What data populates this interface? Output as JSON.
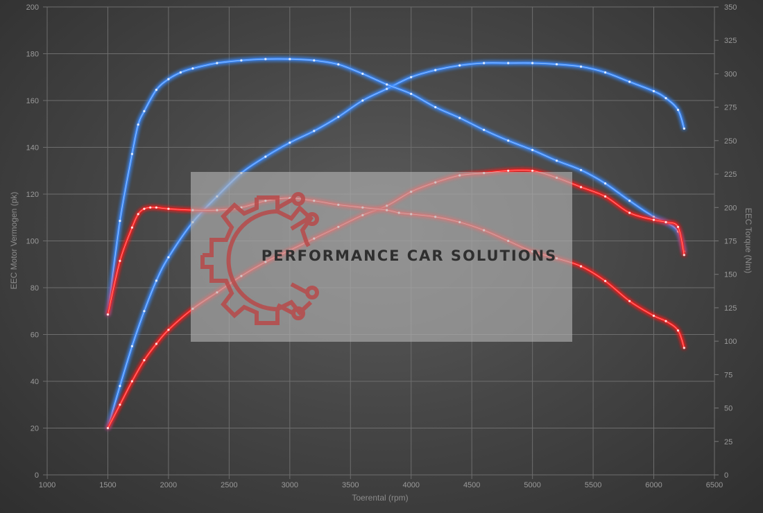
{
  "chart_data": {
    "type": "line",
    "title": "",
    "xlabel": "Toerental (rpm)",
    "ylabel_left": "EEC Motor Vermogen (pk)",
    "ylabel_right": "EEC Torque (Nm)",
    "xlim": [
      1000,
      6500
    ],
    "ylim_left": [
      0,
      200
    ],
    "ylim_right": [
      0,
      350
    ],
    "x_ticks": [
      1000,
      1500,
      2000,
      2500,
      3000,
      3500,
      4000,
      4500,
      5000,
      5500,
      6000,
      6500
    ],
    "y_left_ticks": [
      0,
      20,
      40,
      60,
      80,
      100,
      120,
      140,
      160,
      180,
      200
    ],
    "y_right_ticks": [
      0,
      25,
      50,
      75,
      100,
      125,
      150,
      175,
      200,
      225,
      250,
      275,
      300,
      325,
      350
    ],
    "grid": true,
    "legend": "none",
    "series": [
      {
        "color": "#3d8cff",
        "axis": "left",
        "x": [
          1500,
          1600,
          1700,
          1800,
          1900,
          2000,
          2200,
          2400,
          2600,
          2800,
          3000,
          3200,
          3400,
          3600,
          3800,
          4000,
          4200,
          4400,
          4600,
          4800,
          5000,
          5200,
          5400,
          5600,
          5800,
          6000,
          6100,
          6200,
          6250
        ],
        "values": [
          20,
          38,
          55,
          70,
          83,
          93,
          108,
          119,
          129,
          136,
          142,
          147,
          153,
          160,
          165,
          170,
          173,
          175,
          176,
          176,
          176,
          175.5,
          174.5,
          172,
          168,
          164,
          161,
          156,
          148
        ]
      },
      {
        "color": "#3d8cff",
        "axis": "right",
        "x": [
          1500,
          1600,
          1700,
          1750,
          1800,
          1900,
          2000,
          2100,
          2200,
          2400,
          2600,
          2800,
          3000,
          3200,
          3400,
          3600,
          3800,
          4000,
          4200,
          4400,
          4600,
          4800,
          5000,
          5200,
          5400,
          5600,
          5800,
          6000,
          6100,
          6200,
          6250
        ],
        "values": [
          120,
          190,
          240,
          262,
          272,
          288,
          296,
          301,
          304,
          308,
          310,
          311,
          311,
          310,
          307,
          300,
          292,
          285,
          275,
          267,
          258,
          250,
          243,
          235,
          228,
          218,
          205,
          193,
          189,
          182,
          167
        ]
      },
      {
        "color": "#ff2222",
        "axis": "left",
        "x": [
          1500,
          1600,
          1700,
          1800,
          1900,
          2000,
          2200,
          2400,
          2600,
          2800,
          3000,
          3200,
          3400,
          3600,
          3800,
          4000,
          4200,
          4400,
          4600,
          4800,
          5000,
          5200,
          5400,
          5600,
          5800,
          6000,
          6100,
          6200,
          6250
        ],
        "values": [
          20,
          30,
          40,
          49,
          56,
          62,
          71,
          78,
          85,
          91,
          96,
          101,
          106,
          111,
          115,
          121,
          125,
          128,
          129,
          130,
          130,
          127,
          123,
          119,
          112,
          109,
          108,
          106,
          94
        ]
      },
      {
        "color": "#ff2222",
        "axis": "right",
        "x": [
          1500,
          1600,
          1700,
          1750,
          1800,
          1850,
          1900,
          2000,
          2200,
          2400,
          2600,
          2800,
          3000,
          3200,
          3400,
          3600,
          3800,
          3900,
          4000,
          4200,
          4400,
          4600,
          4800,
          5000,
          5200,
          5400,
          5600,
          5800,
          6000,
          6100,
          6200,
          6250
        ],
        "values": [
          120,
          160,
          185,
          195,
          199,
          200,
          200,
          199,
          198,
          198,
          200,
          205,
          207,
          205,
          202,
          200,
          198,
          196,
          195,
          193,
          189,
          183,
          175,
          167,
          162,
          156,
          145,
          130,
          119,
          115,
          108,
          95
        ]
      }
    ]
  },
  "watermark": {
    "text": "PERFORMANCE CAR SOLUTIONS",
    "logo_icon": "gear-circuit-logo-icon"
  }
}
